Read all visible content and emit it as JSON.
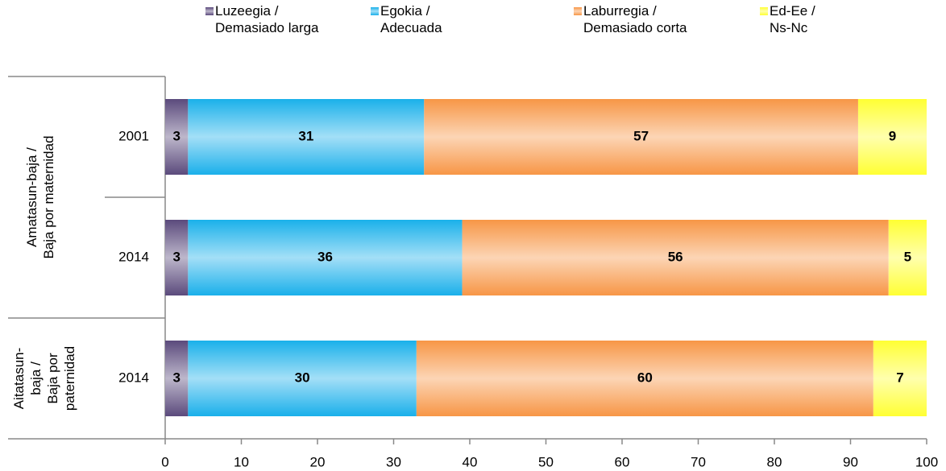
{
  "chart_data": {
    "type": "stacked-barh",
    "categories": [
      "2001",
      "2014",
      "2014"
    ],
    "groups": [
      {
        "label": "Amatasun-baja /\nBaja por maternidad"
      },
      {
        "label": "Aitatasun-\nbaja /\nBaja por\npaternidad"
      }
    ],
    "series": [
      {
        "name": "Luzeegia /\nDemasiado larga",
        "color": "#5b4a7c",
        "values": [
          3,
          3,
          3
        ]
      },
      {
        "name": "Egokia /\nAdecuada",
        "color": "#1ab0ea",
        "values": [
          31,
          36,
          30
        ]
      },
      {
        "name": "Laburregia /\nDemasiado corta",
        "color": "#f79646",
        "values": [
          57,
          56,
          60
        ]
      },
      {
        "name": "Ed-Ee /\nNs-Nc",
        "color": "#ffff33",
        "values": [
          9,
          5,
          7
        ]
      }
    ],
    "xlim": [
      0,
      100
    ],
    "xticks": [
      0,
      10,
      20,
      30,
      40,
      50,
      60,
      70,
      80,
      90,
      100
    ],
    "legend": "top"
  }
}
